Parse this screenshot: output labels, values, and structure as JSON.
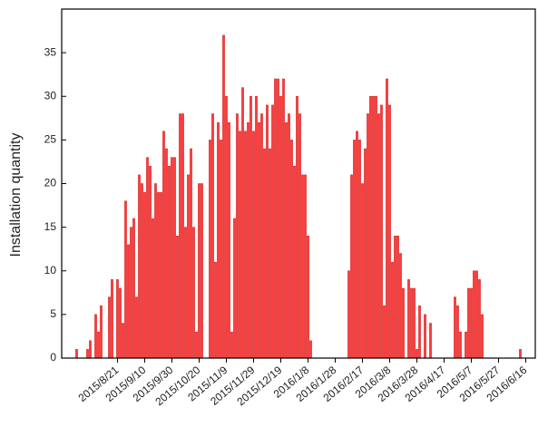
{
  "chart_data": {
    "type": "bar",
    "y_label": "Installation quantity",
    "color": "#ff3b3b",
    "categories": [
      null,
      null,
      null,
      null,
      null,
      null,
      null,
      null,
      null,
      null,
      null,
      null,
      null,
      null,
      null,
      null,
      null,
      null,
      null,
      null,
      "2015/8/21",
      null,
      null,
      null,
      null,
      null,
      null,
      null,
      null,
      null,
      "2015/9/10",
      null,
      null,
      null,
      null,
      null,
      null,
      null,
      null,
      null,
      "2015/9/30",
      null,
      null,
      null,
      null,
      null,
      null,
      null,
      null,
      null,
      "2015/10/20",
      null,
      null,
      null,
      null,
      null,
      null,
      null,
      null,
      null,
      "2015/11/9",
      null,
      null,
      null,
      null,
      null,
      null,
      null,
      null,
      null,
      "2015/11/29",
      null,
      null,
      null,
      null,
      null,
      null,
      null,
      null,
      null,
      "2015/12/19",
      null,
      null,
      null,
      null,
      null,
      null,
      null,
      null,
      null,
      "2016/1/8",
      null,
      null,
      null,
      null,
      null,
      null,
      null,
      null,
      null,
      "2016/1/28",
      null,
      null,
      null,
      null,
      null,
      null,
      null,
      null,
      null,
      "2016/2/17",
      null,
      null,
      null,
      null,
      null,
      null,
      null,
      null,
      null,
      "2016/3/8",
      null,
      null,
      null,
      null,
      null,
      null,
      null,
      null,
      null,
      "2016/3/28",
      null,
      null,
      null,
      null,
      null,
      null,
      null,
      null,
      null,
      "2016/4/17",
      null,
      null,
      null,
      null,
      null,
      null,
      null,
      null,
      null,
      "2016/5/7",
      null,
      null,
      null,
      null,
      null,
      null,
      null,
      null,
      null,
      "2016/5/27",
      null,
      null,
      null,
      null,
      null,
      null,
      null,
      null,
      null,
      "2016/6/16",
      null,
      null,
      null
    ],
    "values": [
      0,
      0,
      0,
      0,
      0,
      1,
      0,
      0,
      0,
      1,
      2,
      0,
      5,
      3,
      6,
      0,
      0,
      7,
      9,
      0,
      9,
      8,
      4,
      18,
      13,
      15,
      16,
      7,
      21,
      20,
      19,
      23,
      22,
      16,
      20,
      19,
      19,
      26,
      24,
      22,
      23,
      23,
      14,
      28,
      28,
      15,
      21,
      24,
      15,
      3,
      20,
      20,
      0,
      0,
      25,
      28,
      11,
      27,
      25,
      37,
      30,
      27,
      3,
      16,
      28,
      26,
      31,
      26,
      27,
      30,
      26,
      30,
      27,
      28,
      24,
      29,
      24,
      29,
      32,
      32,
      30,
      32,
      27,
      28,
      25,
      22,
      30,
      28,
      21,
      21,
      14,
      2,
      0,
      0,
      0,
      0,
      0,
      0,
      0,
      0,
      0,
      0,
      0,
      0,
      0,
      10,
      21,
      25,
      26,
      25,
      20,
      24,
      28,
      30,
      30,
      30,
      28,
      29,
      6,
      32,
      29,
      11,
      14,
      14,
      12,
      8,
      0,
      9,
      8,
      8,
      1,
      6,
      0,
      5,
      0,
      4,
      0,
      0,
      0,
      0,
      0,
      0,
      0,
      0,
      7,
      6,
      3,
      0,
      3,
      8,
      8,
      10,
      10,
      9,
      5,
      0,
      0,
      0,
      0,
      0,
      0,
      0,
      0,
      0,
      0,
      0,
      0,
      0,
      1,
      0,
      0,
      0,
      0,
      0
    ],
    "ylim": [
      0,
      40
    ],
    "yticks": [
      0,
      5,
      10,
      15,
      20,
      25,
      30,
      35
    ]
  }
}
